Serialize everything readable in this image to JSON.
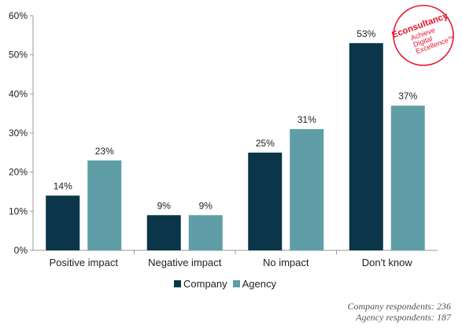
{
  "chart_data": {
    "type": "bar",
    "categories": [
      "Positive impact",
      "Negative impact",
      "No impact",
      "Don't know"
    ],
    "series": [
      {
        "name": "Company",
        "color": "#0b3548",
        "values": [
          14,
          9,
          25,
          53
        ],
        "labels": [
          "14%",
          "9%",
          "25%",
          "53%"
        ]
      },
      {
        "name": "Agency",
        "color": "#5f9ea6",
        "values": [
          23,
          9,
          31,
          37
        ],
        "labels": [
          "23%",
          "9%",
          "31%",
          "37%"
        ]
      }
    ],
    "ylim": [
      0,
      60
    ],
    "yticks": [
      {
        "value": 0,
        "label": "0%"
      },
      {
        "value": 10,
        "label": "10%"
      },
      {
        "value": 20,
        "label": "20%"
      },
      {
        "value": 30,
        "label": "30%"
      },
      {
        "value": 40,
        "label": "40%"
      },
      {
        "value": 50,
        "label": "50%"
      },
      {
        "value": 60,
        "label": "60%"
      }
    ],
    "grid": false,
    "legend": "bottom-center"
  },
  "legend": {
    "company": "Company",
    "agency": "Agency"
  },
  "footnote": {
    "line1": "Company respondents: 236",
    "line2": "Agency respondents: 187"
  },
  "logo": {
    "name": "econsultancy-logo",
    "color": "#e4122c",
    "brand": "Econsultancy",
    "tagline": [
      "Achieve",
      "Digital",
      "Excellence™"
    ]
  }
}
